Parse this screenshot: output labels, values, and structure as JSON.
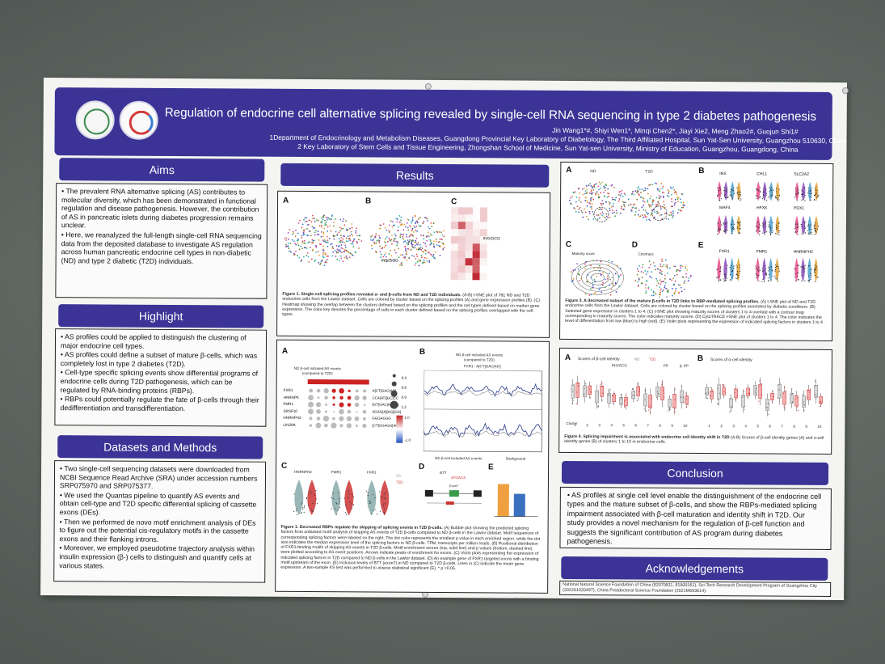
{
  "header": {
    "title": "Regulation of endocrine cell alternative splicing revealed by single-cell RNA sequencing in type 2 diabetes pathogenesis",
    "authors": "Jin Wang1*#, Shiyi Wen1*, Minqi Chen2*, Jiayi Xie2, Meng Zhao2#, Guojun Shi1#",
    "affiliation1": "1Department of Endocrinology and Metabolism Diseases, Guangdong Provincial Key Laboratory of Diabetology, The Third Affiliated Hospital, Sun Yat-Sen University, Guangzhou 510630, China",
    "affiliation2": "2 Key Laboratory of Stem Cells and Tissue Engineering, Zhongshan School of Medicine, Sun Yat-sen University, Ministry of Education, Guangzhou, Guangdong, China"
  },
  "aims": {
    "heading": "Aims",
    "p1": "The prevalent RNA alternative splicing (AS) contributes to molecular diversity, which has been demonstrated in functional regulation and disease pathogenesis. However, the contribution of AS in pancreatic islets during diabetes progression remains unclear.",
    "p2": "Here, we reanalyzed the full-length single-cell RNA sequencing data from the deposited database to investigate AS regulation across human pancreatic endocrine cell types in non-diabetic (ND) and type 2 diabetic (T2D) individuals."
  },
  "highlight": {
    "heading": "Highlight",
    "items": [
      "AS profiles could be applied to distinguish the clustering of major endocrine cell types.",
      "AS profiles could define a subset of mature β-cells, which was completely lost in type 2 diabetes (T2D).",
      "Cell-type specific splicing events show differential programs of endocrine cells during T2D pathogenesis, which can be regulated by RNA-binding proteins (RBPs).",
      "RBPs could potentially regulate the fate of β-cells through their dedifferentiation and transdifferentiation."
    ]
  },
  "methods": {
    "heading": "Datasets and Methods",
    "items": [
      "Two single-cell sequencing datasets were downloaded from NCBI Sequence Read Archive (SRA) under accession numbers SRP075970 and SRP075377.",
      "We used the Quantas pipeline to quantify AS events and obtain cell-type and T2D specific differential splicing of cassette exons (DEs).",
      "Then we performed de novo motif enrichment analysis of DEs to figure out the potential cis-regulatory motifs in the cassette exons and their flanking introns.",
      "Moreover, we employed pseudotime trajectory analysis within insulin expression (β-) cells to distinguish and quantify cells at various states."
    ]
  },
  "results": {
    "heading": "Results",
    "fig1": {
      "labels": [
        "A",
        "B",
        "C"
      ],
      "tags": [
        "INS/GCG",
        "PP",
        "INS/GCG"
      ],
      "caption_title": "Figure 1. Single-cell splicing profiles revealed α- and β-cells from ND and T2D individuals.",
      "caption": "(A-B) t-SNE plot of 781 ND and T2D endocrine cells from the Lawlor dataset. Cells are colored by cluster based on the splicing profiles (A) and gene expression profiles (B). (C) Heatmap showing the overlap between the clusters defined based on the splicing profiles and the cell types defined based on marker gene expression. The color key denotes the percentage of cells in each cluster defined based on the splicing profiles overlapped with the cell types."
    },
    "fig2": {
      "labels": [
        "A",
        "B",
        "C",
        "D",
        "E"
      ],
      "panelA_title": "ND β-cell included AS events (compared to T2D)",
      "panelB_title": "ND β-cell included AS events (compared to T2D)",
      "panelB_sub": "FXR1 - A[CT]GAC[AG]",
      "genes": [
        "FXR1",
        "HNRNPK",
        "FMR1",
        "SRSF10",
        "HNRNPH2",
        "LIN28A"
      ],
      "motifs": [
        "A[CT]GAC[AG]",
        "CCA[AT][GC]CC",
        "[GT]GAC[AG][G]",
        "AGAG[A][AG][GA]",
        "GGGAGGG",
        "[CT]GGAGG[AG]"
      ],
      "legend_sizes": [
        "0.3",
        "0.6",
        "0.9",
        "1.2"
      ],
      "legend_neg": "-1.0",
      "legend_pos": "1.0",
      "legend_events": "ND β-cell included AS events",
      "legend_bg": "Background",
      "violin_genes": [
        "HNRNPH2",
        "FMR1",
        "FXR1"
      ],
      "series_nd": "ND",
      "series_t2d": "T2D",
      "gene_btt": "BTT",
      "motif_label": "ATGACA",
      "exon_label": "Exon7",
      "caption_title": "Figure 1. Decreased RBPs regulate the skipping of splicing events in T2D β-cells.",
      "caption": "(A) Bubble plot showing the predicted splicing factors from unbiased motif analysis of skipping AS events of T2D β-cells compared to ND β-cells in the Lawlor dataset. Motif sequences of corresponding splicing factors were labeled on the right. The dot color represents the smallest p value in each enriched region, while the dot size indicates the median expression level of the splicing factors in ND β-cells. TPM, transcripts per million reads. (B) Positional distribution of FXR1-binding motifs of skipping AS events in T2D β-cells. Motif enrichment scores (top, solid line) and p values (bottom, dashed line) were plotted according to AS event positions. Arrows indicate peaks of enrichment for exons. (C) Violin plots representing the expression of indicated splicing factors in T2D compared to ND β-cells in the Lawlor dataset. (D) An example gene of FXR1 targeted exons with a binding motif upstream of the exon. (E) Inclusion levels of BTT (exon7) in ND compared to T2D β-cells. Lines in (C) indicate the mean gene expression. A two-sample KS test was performed to assess statistical significant (E). * p <0.05."
    },
    "fig3": {
      "labels": [
        "A",
        "B",
        "C",
        "D",
        "E"
      ],
      "nd": "ND",
      "t2d": "T2D",
      "genes_top": [
        "INS",
        "CHL1",
        "SLC2A2"
      ],
      "genes_mid": [
        "MAF4",
        "HFX8",
        "PDX1"
      ],
      "genes_bottom": [
        "FXR1",
        "FMR1",
        "HNRNPH2"
      ],
      "c_label": "Maturity score",
      "d_label": "Cytotrace",
      "caption_title": "Figure 3. A decreased subset of the mature β-cells in T2D links to RBP-mediated splicing profiles.",
      "caption": "(A) t-SNE plot of ND and T2D endocrine cells from the Lawlor dataset. Cells are colored by cluster based on the splicing profiles annotated by diabetic conditions. (B) Selected gene expression in clusters 1 to 4. (C) t-SNE plot showing maturity scores of clusters 1 to 4 overlaid with a contour map corresponding to maturity scores. The color indicates maturity scores. (D) CytoTRACE t-SNE plot of clusters 1 to 4. The color indicates the level of differentiation from low (blue) to high (red). (E) Violin plots representing the expression of indicated splicing factors in clusters 1 to 4."
    },
    "fig4": {
      "labels": [
        "A",
        "B"
      ],
      "titleA": "Scores of β-cell identity",
      "titleB": "Scores of α-cell identity",
      "legend_nd": "ND",
      "legend_t2d": "T2D",
      "group_tags": [
        "INS/GCG",
        "PP",
        "β, PP"
      ],
      "cluster_label": "Cluster",
      "clusters": [
        "1",
        "2",
        "3",
        "4",
        "5",
        "6",
        "7",
        "8",
        "9",
        "10"
      ],
      "caption_title": "Figure 4. Splicing impairment is associated with endocrine cell identity shift in T2D",
      "caption": "(A-B) Scores of β-cell identity genes (A) and α-cell identity genes (B) of clusters 1 to 10 in endocrine cells."
    }
  },
  "conclusion": {
    "heading": "Conclusion",
    "text": "AS profiles at single cell level enable the distinguishment of the endocrine cell types and the mature subset of β-cells, and show the RBPs-mediated splicing impairment associated with β-cell maturation and identity shift in T2D. Our study provides a novel mechanism for the regulation of β-cell function and suggests the significant contribution of AS program during diabetes pathogenesis."
  },
  "acknowledgements": {
    "heading": "Acknowledgements",
    "text": "National Natural Science Foundation of China (82070811, 81900161), Sci-Tech Research Development Program of Guangzhou City (202201020497), China Postdoctoral Science Foundation (2021M693614)."
  },
  "colors": {
    "header_bg": "#3b3496",
    "poster_bg": "#f4f4f2",
    "wall": "#646b67"
  }
}
